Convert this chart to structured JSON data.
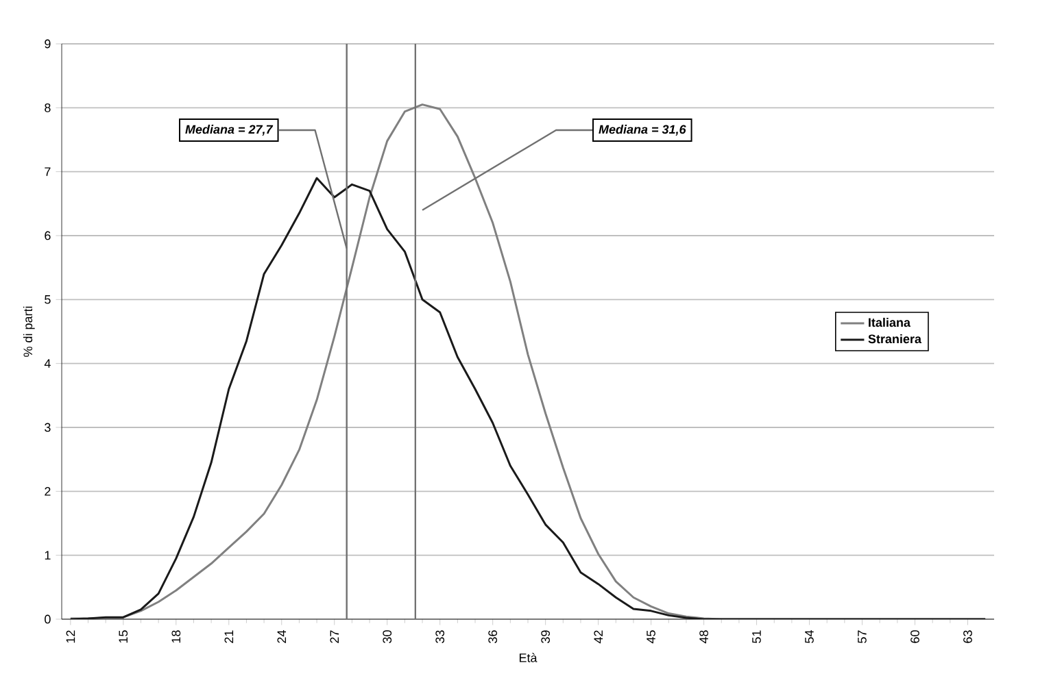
{
  "chart_data": {
    "type": "line",
    "xlabel": "Età",
    "ylabel": "% di parti",
    "x": [
      12,
      13,
      14,
      15,
      16,
      17,
      18,
      19,
      20,
      21,
      22,
      23,
      24,
      25,
      26,
      27,
      28,
      29,
      30,
      31,
      32,
      33,
      34,
      35,
      36,
      37,
      38,
      39,
      40,
      41,
      42,
      43,
      44,
      45,
      46,
      47,
      48,
      49,
      50,
      51,
      52,
      53,
      54,
      55,
      56,
      57,
      58,
      59,
      60,
      61,
      62,
      63,
      64
    ],
    "series": [
      {
        "name": "Italiana",
        "color": "#808080",
        "values": [
          0.01,
          0.01,
          0.02,
          0.03,
          0.13,
          0.27,
          0.45,
          0.66,
          0.87,
          1.12,
          1.37,
          1.65,
          2.1,
          2.65,
          3.43,
          4.42,
          5.5,
          6.6,
          7.48,
          7.94,
          8.05,
          7.98,
          7.55,
          6.9,
          6.2,
          5.28,
          4.14,
          3.22,
          2.37,
          1.58,
          1.02,
          0.59,
          0.34,
          0.2,
          0.09,
          0.04,
          0.01,
          0,
          0,
          0,
          0,
          0,
          0,
          0,
          0,
          0,
          0,
          0,
          0,
          0,
          0,
          0,
          0
        ]
      },
      {
        "name": "Straniera",
        "color": "#1a1a1a",
        "values": [
          0,
          0.01,
          0.03,
          0.03,
          0.15,
          0.4,
          0.95,
          1.6,
          2.45,
          3.6,
          4.35,
          5.4,
          5.85,
          6.35,
          6.9,
          6.6,
          6.8,
          6.7,
          6.1,
          5.75,
          5.0,
          4.8,
          4.1,
          3.6,
          3.07,
          2.4,
          1.95,
          1.48,
          1.2,
          0.73,
          0.55,
          0.34,
          0.16,
          0.13,
          0.06,
          0.02,
          0,
          0,
          0,
          0,
          0,
          0,
          0,
          0,
          0,
          0,
          0,
          0,
          0,
          0,
          0,
          0,
          0
        ]
      }
    ],
    "xlim": [
      11.5,
      64.5
    ],
    "xticks": [
      12,
      15,
      18,
      21,
      24,
      27,
      30,
      33,
      36,
      39,
      42,
      45,
      48,
      51,
      54,
      57,
      60,
      63
    ],
    "ylim": [
      0,
      9
    ],
    "yticks": [
      0,
      1,
      2,
      3,
      4,
      5,
      6,
      7,
      8,
      9
    ],
    "grid": "y",
    "legend": "right",
    "marker": "none",
    "line_style": "solid",
    "ref_lines": [
      {
        "axis": "x",
        "value": 27.7,
        "label": "Mediana = 27,7",
        "color": "#707070"
      },
      {
        "axis": "x",
        "value": 31.6,
        "label": "Mediana = 31,6",
        "color": "#707070"
      }
    ]
  }
}
